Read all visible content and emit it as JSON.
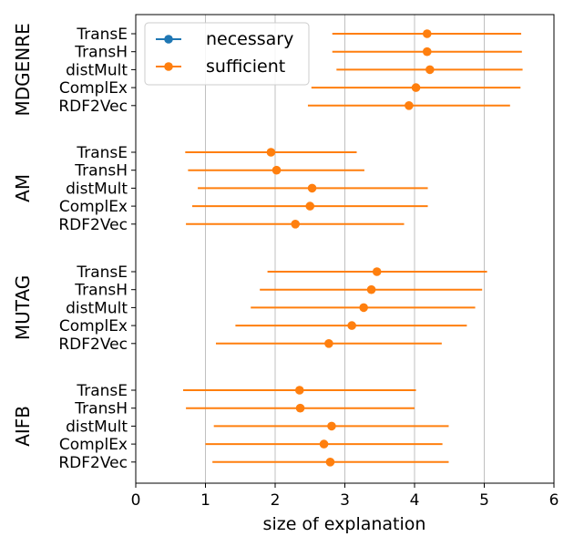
{
  "chart_data": {
    "type": "scatter",
    "title": "",
    "xlabel": "size of explanation",
    "ylabel": "",
    "xlim": [
      0,
      6
    ],
    "xticks": [
      0,
      1,
      2,
      3,
      4,
      5,
      6
    ],
    "grid_x": true,
    "legend": {
      "placement": "top-left",
      "entries": [
        {
          "name": "necessary",
          "color": "#1f77b4"
        },
        {
          "name": "sufficient",
          "color": "#ff7f0e"
        }
      ]
    },
    "groups": [
      {
        "name": "MDGENRE",
        "methods": [
          {
            "label": "TransE",
            "mean": 4.18,
            "low": 2.82,
            "high": 5.53
          },
          {
            "label": "TransH",
            "mean": 4.18,
            "low": 2.82,
            "high": 5.54
          },
          {
            "label": "distMult",
            "mean": 4.22,
            "low": 2.88,
            "high": 5.55
          },
          {
            "label": "ComplEx",
            "mean": 4.02,
            "low": 2.52,
            "high": 5.52
          },
          {
            "label": "RDF2Vec",
            "mean": 3.92,
            "low": 2.47,
            "high": 5.37
          }
        ]
      },
      {
        "name": "AM",
        "methods": [
          {
            "label": "TransE",
            "mean": 1.94,
            "low": 0.71,
            "high": 3.17
          },
          {
            "label": "TransH",
            "mean": 2.02,
            "low": 0.75,
            "high": 3.28
          },
          {
            "label": "distMult",
            "mean": 2.53,
            "low": 0.89,
            "high": 4.19
          },
          {
            "label": "ComplEx",
            "mean": 2.5,
            "low": 0.81,
            "high": 4.19
          },
          {
            "label": "RDF2Vec",
            "mean": 2.29,
            "low": 0.72,
            "high": 3.85
          }
        ]
      },
      {
        "name": "MUTAG",
        "methods": [
          {
            "label": "TransE",
            "mean": 3.46,
            "low": 1.89,
            "high": 5.04
          },
          {
            "label": "TransH",
            "mean": 3.38,
            "low": 1.78,
            "high": 4.97
          },
          {
            "label": "distMult",
            "mean": 3.27,
            "low": 1.65,
            "high": 4.87
          },
          {
            "label": "ComplEx",
            "mean": 3.1,
            "low": 1.43,
            "high": 4.75
          },
          {
            "label": "RDF2Vec",
            "mean": 2.77,
            "low": 1.15,
            "high": 4.39
          }
        ]
      },
      {
        "name": "AIFB",
        "methods": [
          {
            "label": "TransE",
            "mean": 2.35,
            "low": 0.68,
            "high": 4.02
          },
          {
            "label": "TransH",
            "mean": 2.36,
            "low": 0.72,
            "high": 4.0
          },
          {
            "label": "distMult",
            "mean": 2.81,
            "low": 1.12,
            "high": 4.49
          },
          {
            "label": "ComplEx",
            "mean": 2.7,
            "low": 1.0,
            "high": 4.4
          },
          {
            "label": "RDF2Vec",
            "mean": 2.79,
            "low": 1.1,
            "high": 4.49
          }
        ]
      }
    ],
    "series": [
      {
        "name": "necessary",
        "color": "#1f77b4",
        "values": []
      },
      {
        "name": "sufficient",
        "color": "#ff7f0e",
        "values": "per groups[].methods[].mean with error range low-high"
      }
    ]
  }
}
